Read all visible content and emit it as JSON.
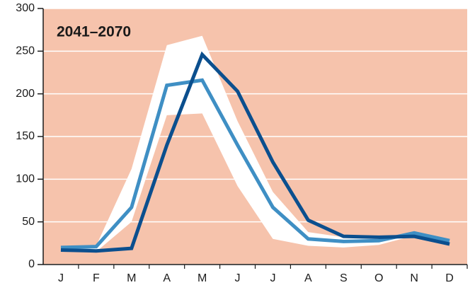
{
  "chart_data": {
    "type": "line",
    "title": "2041–2070",
    "categories": [
      "J",
      "F",
      "M",
      "A",
      "M",
      "J",
      "J",
      "A",
      "S",
      "O",
      "N",
      "D"
    ],
    "band": {
      "color": "#ffffff",
      "upper": [
        21,
        22,
        112,
        257,
        268,
        168,
        85,
        38,
        32,
        32,
        36,
        30
      ],
      "lower": [
        16,
        15,
        50,
        175,
        177,
        92,
        30,
        22,
        20,
        23,
        34,
        24
      ]
    },
    "series": [
      {
        "color": "#3f8fc4",
        "values": [
          20,
          21,
          67,
          210,
          216,
          140,
          67,
          30,
          27,
          28,
          37,
          28
        ]
      },
      {
        "color": "#0b4f8e",
        "values": [
          17,
          16,
          19,
          140,
          246,
          203,
          120,
          52,
          33,
          32,
          33,
          24
        ]
      }
    ],
    "ylim": [
      0,
      300
    ],
    "yticks": [
      0,
      50,
      100,
      150,
      200,
      250,
      300
    ],
    "grid": true,
    "background": "#f6c3ac"
  }
}
